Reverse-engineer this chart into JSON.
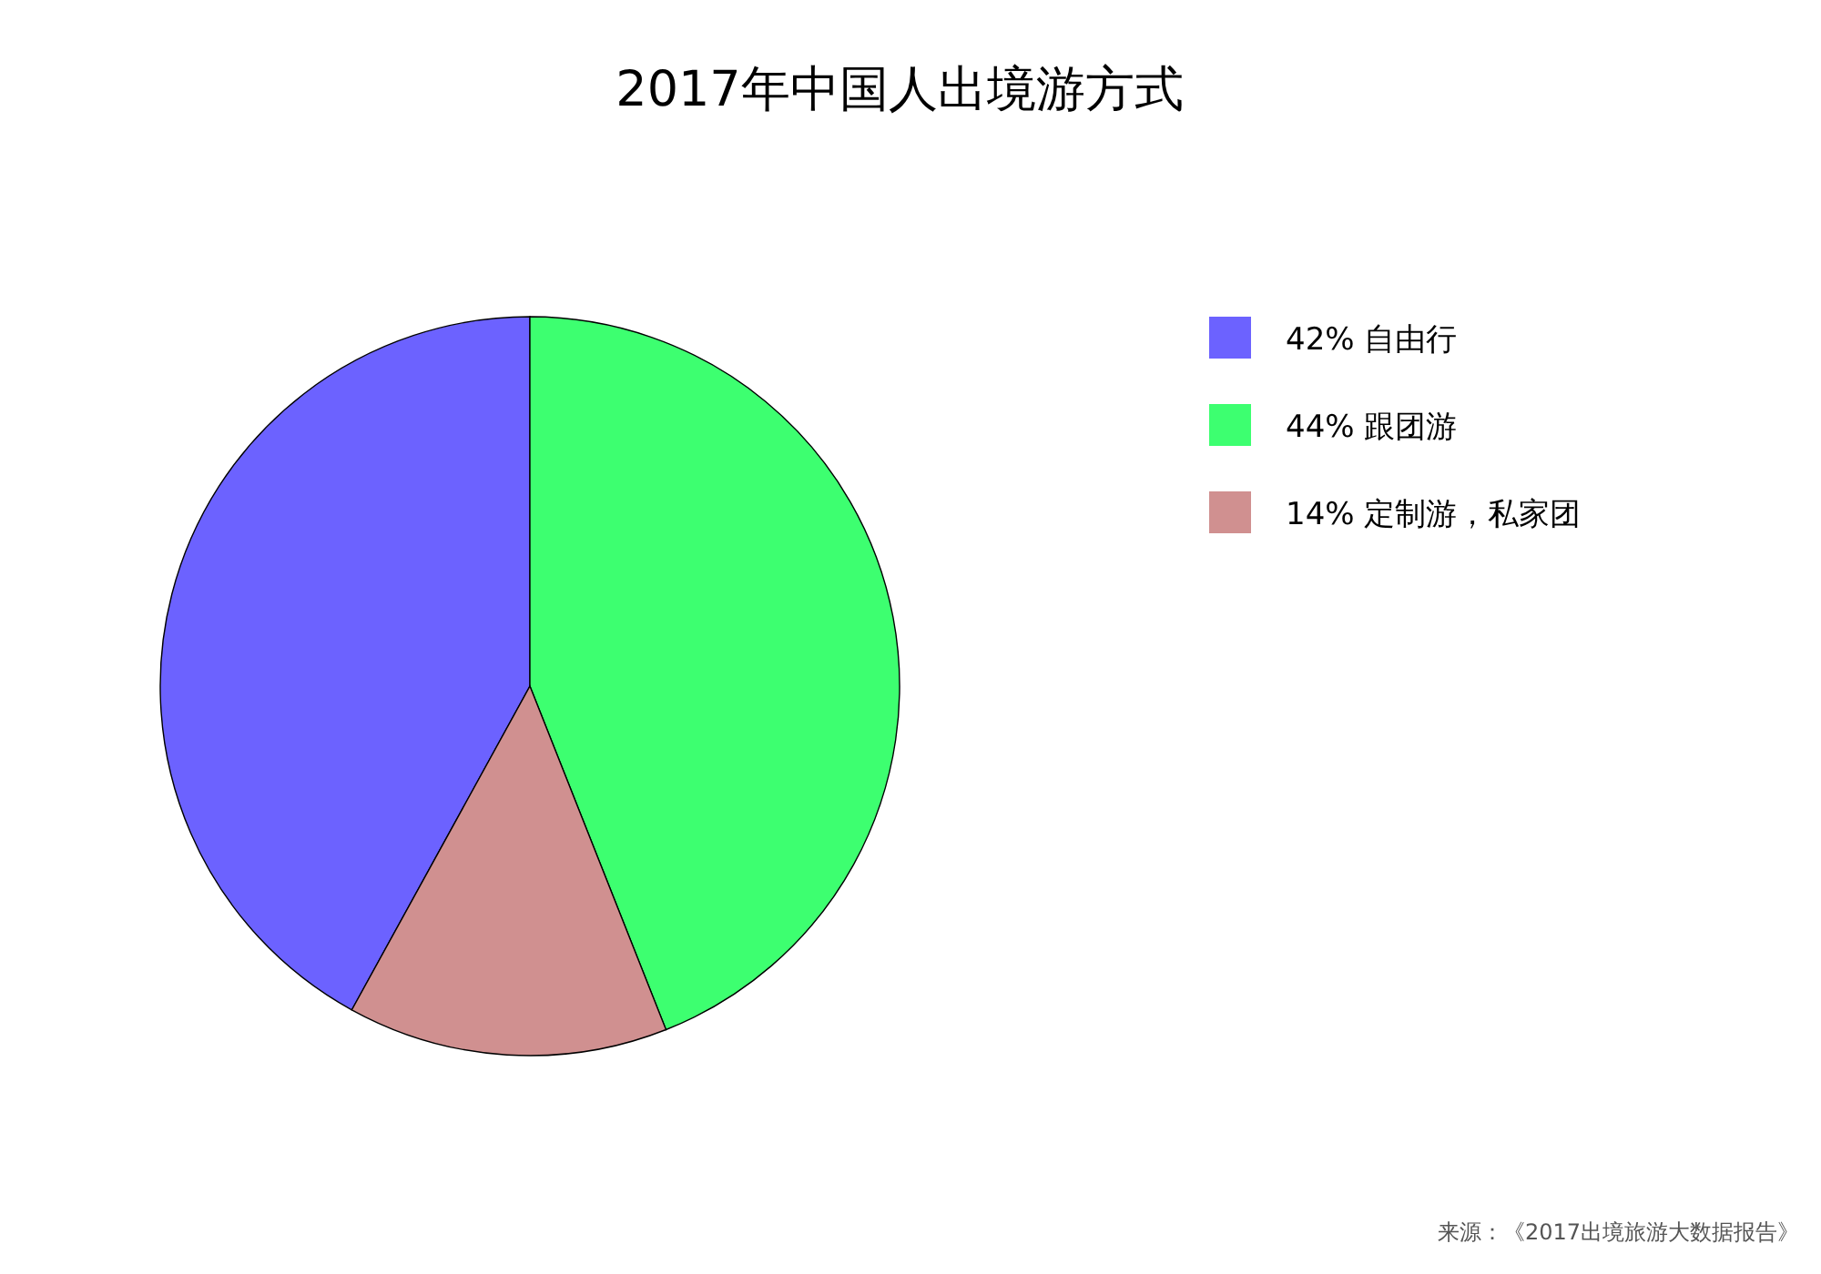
{
  "chart_data": {
    "type": "pie",
    "title": "2017年中国人出境游方式",
    "categories": [
      "42% 自由行",
      "44% 跟团游",
      "14% 定制游，私家团"
    ],
    "values": [
      42,
      44,
      14
    ],
    "colors": [
      "#6c62ff",
      "#3dff70",
      "#d09090"
    ],
    "legend": "right",
    "annotations": [
      "来源：《2017出境旅游大数据报告》"
    ]
  }
}
